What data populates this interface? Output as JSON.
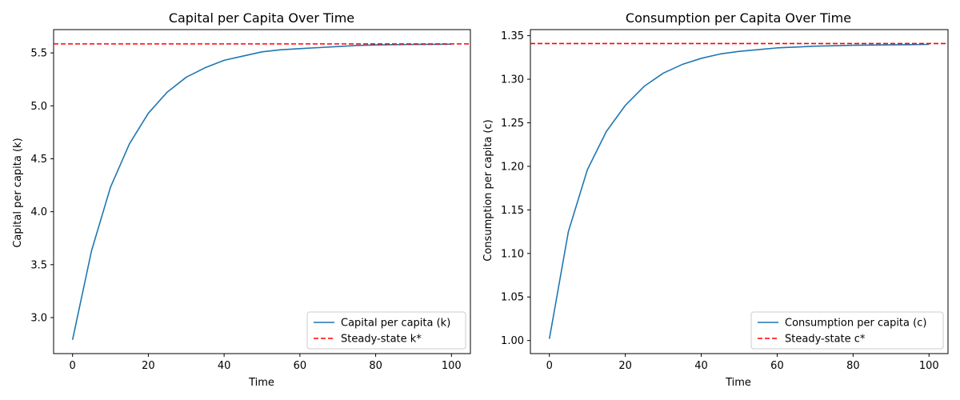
{
  "chart_data": [
    {
      "type": "line",
      "title": "Capital per Capita Over Time",
      "xlabel": "Time",
      "ylabel": "Capital per capita (k)",
      "xlim": [
        -5,
        105
      ],
      "ylim": [
        2.66,
        5.72
      ],
      "xticks": [
        0,
        20,
        40,
        60,
        80,
        100
      ],
      "yticks": [
        3.0,
        3.5,
        4.0,
        4.5,
        5.0,
        5.5
      ],
      "ytick_decimals": 1,
      "grid": false,
      "legend_position": "lower-right",
      "series": [
        {
          "name": "Capital per capita (k)",
          "color": "#1f77b4",
          "style": "solid",
          "x": [
            0,
            5,
            10,
            15,
            20,
            25,
            30,
            35,
            40,
            45,
            50,
            55,
            60,
            65,
            70,
            75,
            80,
            85,
            90,
            95,
            100
          ],
          "values": [
            2.79,
            3.63,
            4.23,
            4.64,
            4.93,
            5.13,
            5.27,
            5.36,
            5.43,
            5.47,
            5.51,
            5.53,
            5.54,
            5.55,
            5.56,
            5.57,
            5.575,
            5.578,
            5.58,
            5.581,
            5.582
          ]
        },
        {
          "name": "Steady-state k*",
          "color": "#ff0000",
          "style": "dashed",
          "hline": 5.585
        }
      ]
    },
    {
      "type": "line",
      "title": "Consumption per Capita Over Time",
      "xlabel": "Time",
      "ylabel": "Consumption per capita (c)",
      "xlim": [
        -5,
        105
      ],
      "ylim": [
        0.985,
        1.357
      ],
      "xticks": [
        0,
        20,
        40,
        60,
        80,
        100
      ],
      "yticks": [
        1.0,
        1.05,
        1.1,
        1.15,
        1.2,
        1.25,
        1.3,
        1.35
      ],
      "ytick_decimals": 2,
      "grid": false,
      "legend_position": "lower-right",
      "series": [
        {
          "name": "Consumption per capita (c)",
          "color": "#1f77b4",
          "style": "solid",
          "x": [
            0,
            5,
            10,
            15,
            20,
            25,
            30,
            35,
            40,
            45,
            50,
            55,
            60,
            65,
            70,
            75,
            80,
            85,
            90,
            95,
            100
          ],
          "values": [
            1.002,
            1.125,
            1.196,
            1.24,
            1.27,
            1.292,
            1.307,
            1.317,
            1.324,
            1.329,
            1.332,
            1.334,
            1.336,
            1.337,
            1.338,
            1.3385,
            1.339,
            1.3393,
            1.3395,
            1.3397,
            1.34
          ]
        },
        {
          "name": "Steady-state c*",
          "color": "#ff0000",
          "style": "dashed",
          "hline": 1.341
        }
      ]
    }
  ]
}
